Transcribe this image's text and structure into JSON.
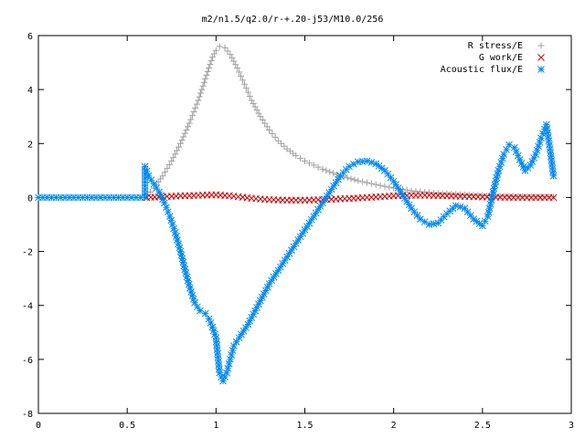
{
  "chart_data": {
    "type": "scatter",
    "title": "m2/n1.5/q2.0/r-+.20-j53/M10.0/256",
    "xlabel": "",
    "ylabel": "",
    "xlim": [
      0,
      3
    ],
    "ylim": [
      -8,
      6
    ],
    "xticks": [
      "0",
      "0.5",
      "1",
      "1.5",
      "2",
      "2.5",
      "3"
    ],
    "yticks": [
      "-8",
      "-6",
      "-4",
      "-2",
      "0",
      "2",
      "4",
      "6"
    ],
    "legend_position": "top-right",
    "grid": false,
    "series": [
      {
        "name": "R stress/E",
        "marker": "plus",
        "color": "#a0a0a0",
        "points": [
          [
            0.61,
            0.05
          ],
          [
            0.65,
            0.35
          ],
          [
            0.7,
            0.8
          ],
          [
            0.75,
            1.35
          ],
          [
            0.8,
            2.0
          ],
          [
            0.85,
            2.75
          ],
          [
            0.9,
            3.6
          ],
          [
            0.94,
            4.4
          ],
          [
            0.98,
            5.2
          ],
          [
            1.0,
            5.45
          ],
          [
            1.02,
            5.6
          ],
          [
            1.05,
            5.55
          ],
          [
            1.08,
            5.3
          ],
          [
            1.12,
            4.8
          ],
          [
            1.16,
            4.2
          ],
          [
            1.2,
            3.6
          ],
          [
            1.25,
            3.0
          ],
          [
            1.3,
            2.5
          ],
          [
            1.35,
            2.1
          ],
          [
            1.4,
            1.8
          ],
          [
            1.45,
            1.55
          ],
          [
            1.5,
            1.35
          ],
          [
            1.55,
            1.2
          ],
          [
            1.6,
            1.05
          ],
          [
            1.7,
            0.8
          ],
          [
            1.8,
            0.62
          ],
          [
            1.9,
            0.48
          ],
          [
            2.0,
            0.35
          ],
          [
            2.1,
            0.25
          ],
          [
            2.2,
            0.18
          ],
          [
            2.3,
            0.14
          ],
          [
            2.4,
            0.1
          ],
          [
            2.5,
            0.08
          ],
          [
            2.6,
            0.05
          ],
          [
            2.7,
            0.04
          ],
          [
            2.8,
            0.03
          ],
          [
            2.9,
            0.02
          ]
        ]
      },
      {
        "name": "G work/E",
        "marker": "cross",
        "color": "#cc0000",
        "points": [
          [
            0.61,
            0.0
          ],
          [
            0.7,
            0.03
          ],
          [
            0.8,
            0.06
          ],
          [
            0.9,
            0.08
          ],
          [
            1.0,
            0.1
          ],
          [
            1.1,
            0.05
          ],
          [
            1.2,
            -0.03
          ],
          [
            1.3,
            -0.08
          ],
          [
            1.4,
            -0.1
          ],
          [
            1.5,
            -0.1
          ],
          [
            1.6,
            -0.08
          ],
          [
            1.7,
            -0.05
          ],
          [
            1.8,
            -0.02
          ],
          [
            1.9,
            0.02
          ],
          [
            2.0,
            0.06
          ],
          [
            2.1,
            0.08
          ],
          [
            2.2,
            0.08
          ],
          [
            2.3,
            0.06
          ],
          [
            2.4,
            0.04
          ],
          [
            2.5,
            0.02
          ],
          [
            2.6,
            0.01
          ],
          [
            2.7,
            0.0
          ],
          [
            2.8,
            0.0
          ],
          [
            2.9,
            0.0
          ]
        ]
      },
      {
        "name": "Acoustic flux/E",
        "marker": "star",
        "color": "#0088ee",
        "points": [
          [
            0.0,
            0.0
          ],
          [
            0.05,
            0.0
          ],
          [
            0.1,
            0.0
          ],
          [
            0.15,
            0.0
          ],
          [
            0.2,
            0.0
          ],
          [
            0.25,
            0.0
          ],
          [
            0.3,
            0.0
          ],
          [
            0.35,
            0.0
          ],
          [
            0.4,
            0.0
          ],
          [
            0.45,
            0.0
          ],
          [
            0.5,
            0.0
          ],
          [
            0.55,
            0.0
          ],
          [
            0.6,
            0.0
          ],
          [
            0.6,
            1.15
          ],
          [
            0.62,
            0.8
          ],
          [
            0.65,
            0.5
          ],
          [
            0.68,
            0.2
          ],
          [
            0.71,
            -0.2
          ],
          [
            0.74,
            -0.7
          ],
          [
            0.77,
            -1.3
          ],
          [
            0.8,
            -2.0
          ],
          [
            0.83,
            -2.8
          ],
          [
            0.86,
            -3.5
          ],
          [
            0.88,
            -3.9
          ],
          [
            0.91,
            -4.2
          ],
          [
            0.94,
            -4.3
          ],
          [
            0.96,
            -4.5
          ],
          [
            0.98,
            -4.8
          ],
          [
            1.0,
            -5.2
          ],
          [
            1.02,
            -6.5
          ],
          [
            1.04,
            -6.8
          ],
          [
            1.06,
            -6.5
          ],
          [
            1.08,
            -6.0
          ],
          [
            1.1,
            -5.5
          ],
          [
            1.13,
            -5.2
          ],
          [
            1.18,
            -4.7
          ],
          [
            1.22,
            -4.2
          ],
          [
            1.26,
            -3.7
          ],
          [
            1.3,
            -3.2
          ],
          [
            1.35,
            -2.7
          ],
          [
            1.4,
            -2.2
          ],
          [
            1.45,
            -1.7
          ],
          [
            1.5,
            -1.2
          ],
          [
            1.55,
            -0.7
          ],
          [
            1.6,
            -0.2
          ],
          [
            1.65,
            0.3
          ],
          [
            1.7,
            0.8
          ],
          [
            1.75,
            1.15
          ],
          [
            1.8,
            1.32
          ],
          [
            1.85,
            1.35
          ],
          [
            1.9,
            1.25
          ],
          [
            1.95,
            1.0
          ],
          [
            2.0,
            0.6
          ],
          [
            2.05,
            0.1
          ],
          [
            2.1,
            -0.4
          ],
          [
            2.15,
            -0.8
          ],
          [
            2.2,
            -1.0
          ],
          [
            2.25,
            -0.95
          ],
          [
            2.3,
            -0.6
          ],
          [
            2.35,
            -0.3
          ],
          [
            2.4,
            -0.4
          ],
          [
            2.45,
            -0.8
          ],
          [
            2.5,
            -1.05
          ],
          [
            2.53,
            -0.7
          ],
          [
            2.56,
            0.2
          ],
          [
            2.59,
            1.0
          ],
          [
            2.62,
            1.6
          ],
          [
            2.65,
            1.95
          ],
          [
            2.68,
            1.85
          ],
          [
            2.71,
            1.4
          ],
          [
            2.74,
            1.0
          ],
          [
            2.77,
            1.2
          ],
          [
            2.8,
            1.6
          ],
          [
            2.83,
            2.2
          ],
          [
            2.86,
            2.7
          ],
          [
            2.88,
            1.8
          ],
          [
            2.9,
            0.8
          ]
        ]
      }
    ]
  }
}
